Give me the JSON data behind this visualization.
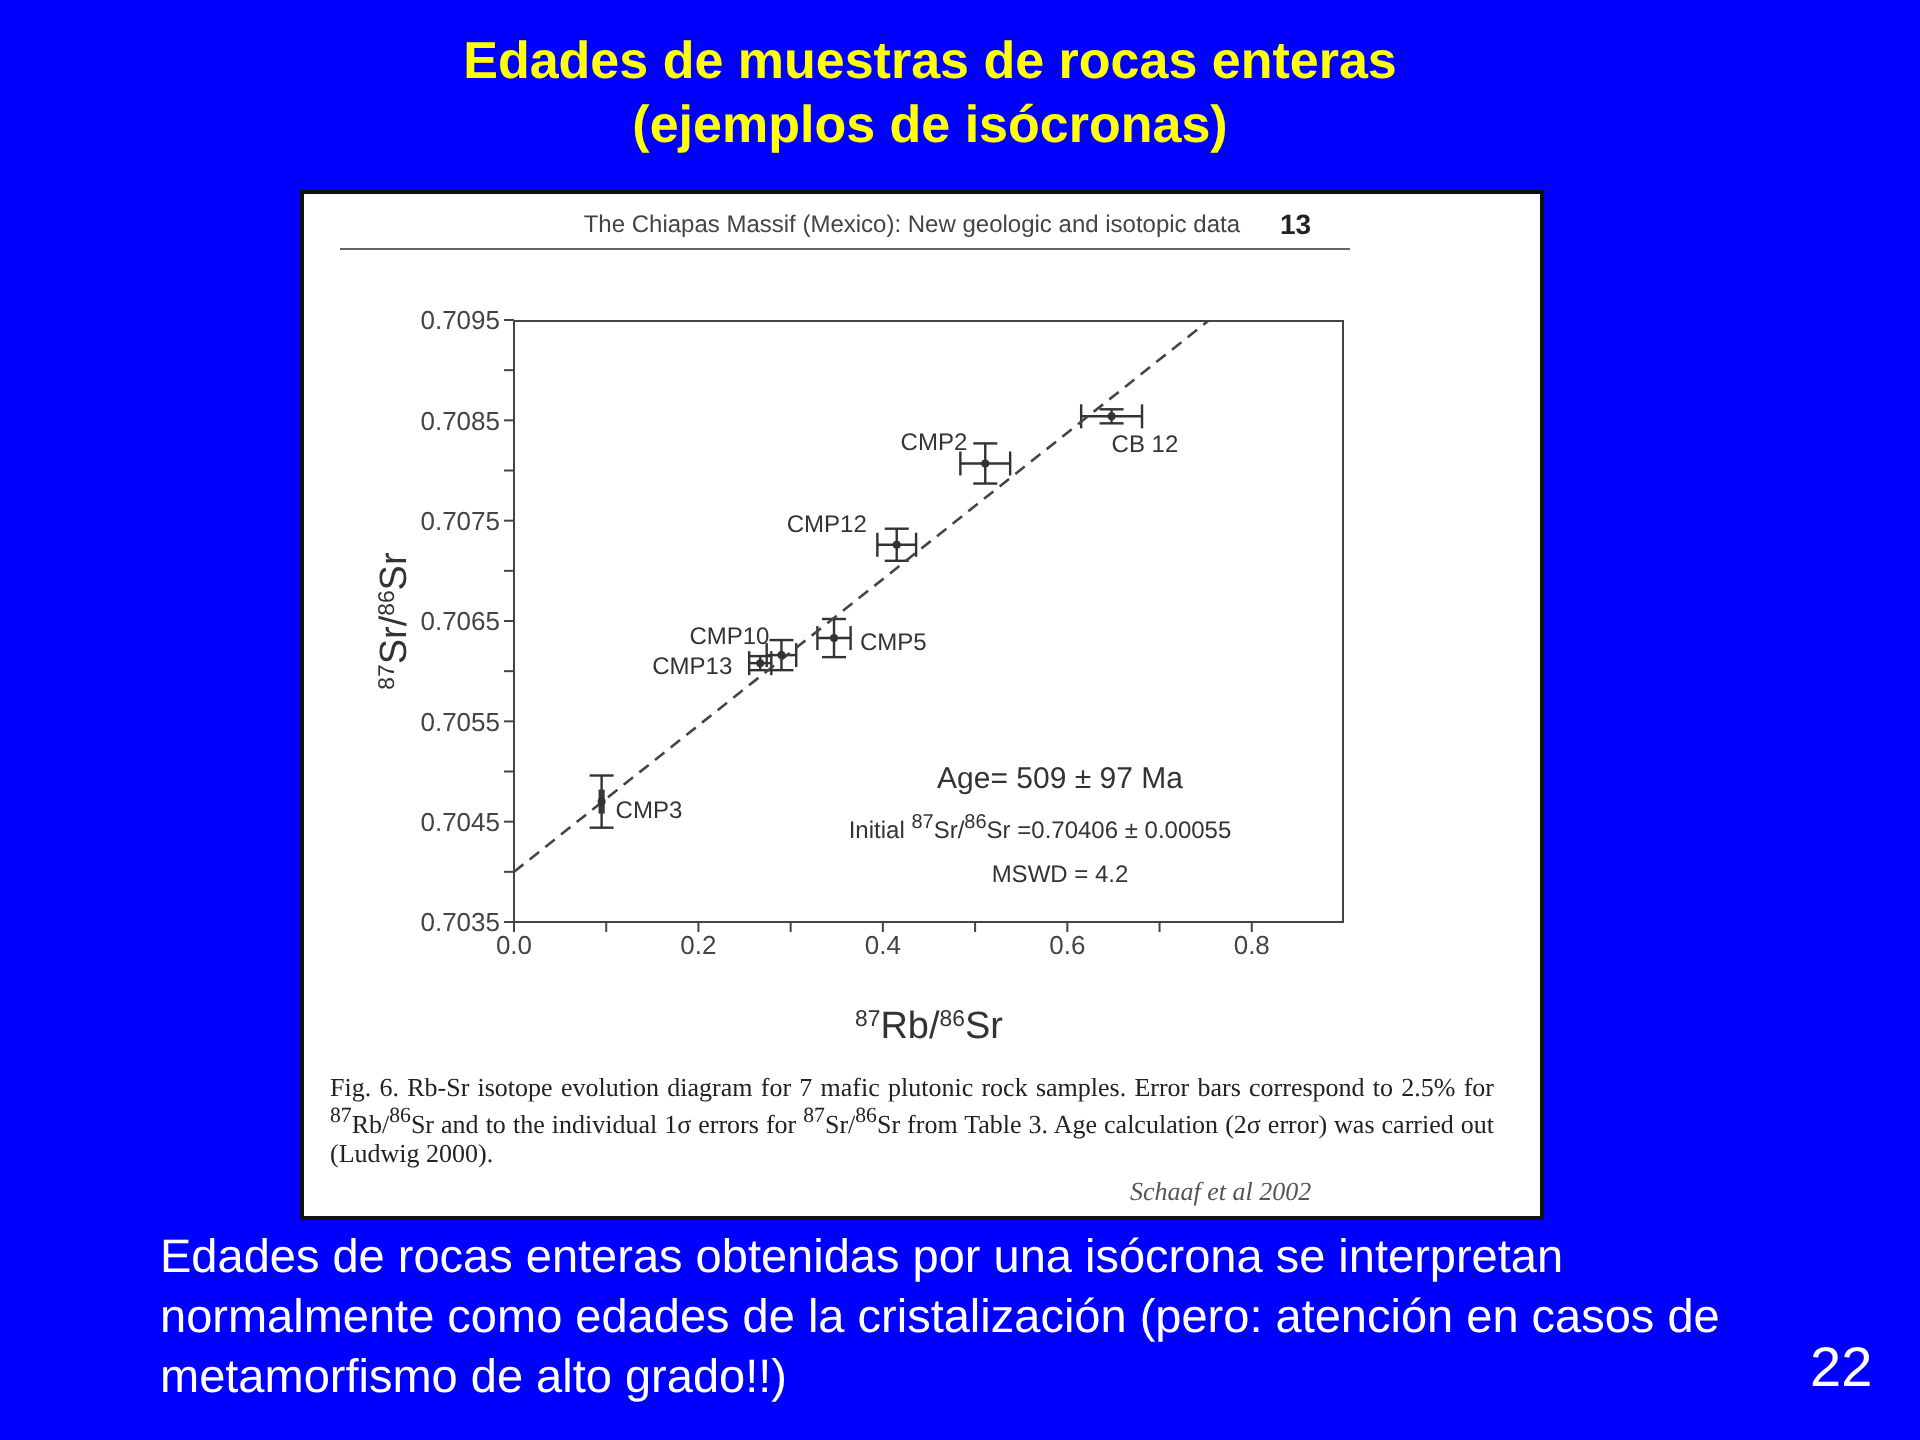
{
  "chart_data": {
    "type": "scatter",
    "title": "Edades de muestras de rocas enteras (ejemplos de isócronas)",
    "xlabel": "$^{87}$Rb/$^{86}$Sr",
    "ylabel": "$^{87}$Sr/$^{86}$Sr",
    "xlim": [
      0,
      0.9
    ],
    "xticks": [
      {
        "value": 0,
        "label": "0.0"
      },
      {
        "value": 0.1,
        "label": null
      },
      {
        "value": 0.2,
        "label": "0.2"
      },
      {
        "value": 0.3,
        "label": null
      },
      {
        "value": 0.4,
        "label": "0.4"
      },
      {
        "value": 0.5,
        "label": null
      },
      {
        "value": 0.6,
        "label": "0.6"
      },
      {
        "value": 0.7,
        "label": null
      },
      {
        "value": 0.8,
        "label": "0.8"
      }
    ],
    "ylim": [
      0.7035,
      0.7095
    ],
    "yticks": [
      0.7035,
      {
        "value": 0.704,
        "label": null
      },
      0.7045,
      {
        "value": 0.705,
        "label": null
      },
      0.7055,
      {
        "value": 0.706,
        "label": null
      },
      0.7065,
      {
        "value": 0.707,
        "label": null
      },
      0.7075,
      {
        "value": 0.708,
        "label": null
      },
      0.7085,
      {
        "value": 0.709,
        "label": null
      },
      0.7095
    ],
    "series": [
      {
        "color": "#333333",
        "marker": "circle",
        "x": [
          0.095,
          0.267,
          0.29,
          0.347,
          0.415,
          0.511,
          0.648
        ],
        "values": [
          0.7047,
          0.70608,
          0.70616,
          0.70633,
          0.70726,
          0.70807,
          0.70854
        ],
        "errors": [
          0.00026,
          7e-05,
          0.00015,
          0.00019,
          0.00016,
          0.0002,
          7e-05
        ],
        "xerrors": [
          0.002,
          0.012,
          0.016,
          0.018,
          0.021,
          0.027,
          0.033
        ]
      },
      {
        "type": "line",
        "color": "#444444",
        "x": [
          0,
          0.754
        ],
        "values": [
          0.704,
          0.7095
        ]
      }
    ],
    "line_style": "dashed",
    "grid": false,
    "legend": false,
    "annotations": [
      "The Chiapas Massif (Mexico): New geologic and isotopic data",
      "13",
      {
        "text": "CMP3",
        "x": 0.095,
        "y": 0.7047
      },
      {
        "text": "CMP13",
        "x": 0.267,
        "y": 0.70608
      },
      {
        "text": "CMP10",
        "x": 0.29,
        "y": 0.70616
      },
      {
        "text": "CMP5",
        "x": 0.347,
        "y": 0.70633
      },
      {
        "text": "CMP12",
        "x": 0.415,
        "y": 0.70726
      },
      {
        "text": "CMP2",
        "x": 0.511,
        "y": 0.70807
      },
      {
        "text": "CB 12",
        "x": 0.648,
        "y": 0.70854
      },
      "Age= 509 ± 97 Ma",
      "Initial $^{87}$Sr/$^{86}$Sr =0.70406 ± 0.00055",
      "MSWD = 4.2",
      "Fig. 6. Rb-Sr isotope evolution diagram for 7 mafic plutonic rock samples. Error bars correspond to 2.5% for $^{87}$Rb/$^{86}$Sr and to the individual 1σ errors for $^{87}$Sr/$^{86}$Sr from Table 3. Age calculation (2σ error) was carried out (Ludwig 2000).",
      "Schaaf et al 2002",
      "Edades de rocas enteras obtenidas por una isócrona se interpretan normalmente como edades de la cristalización (pero: atención en casos de metamorfismo de alto grado!!)",
      "22"
    ]
  }
}
